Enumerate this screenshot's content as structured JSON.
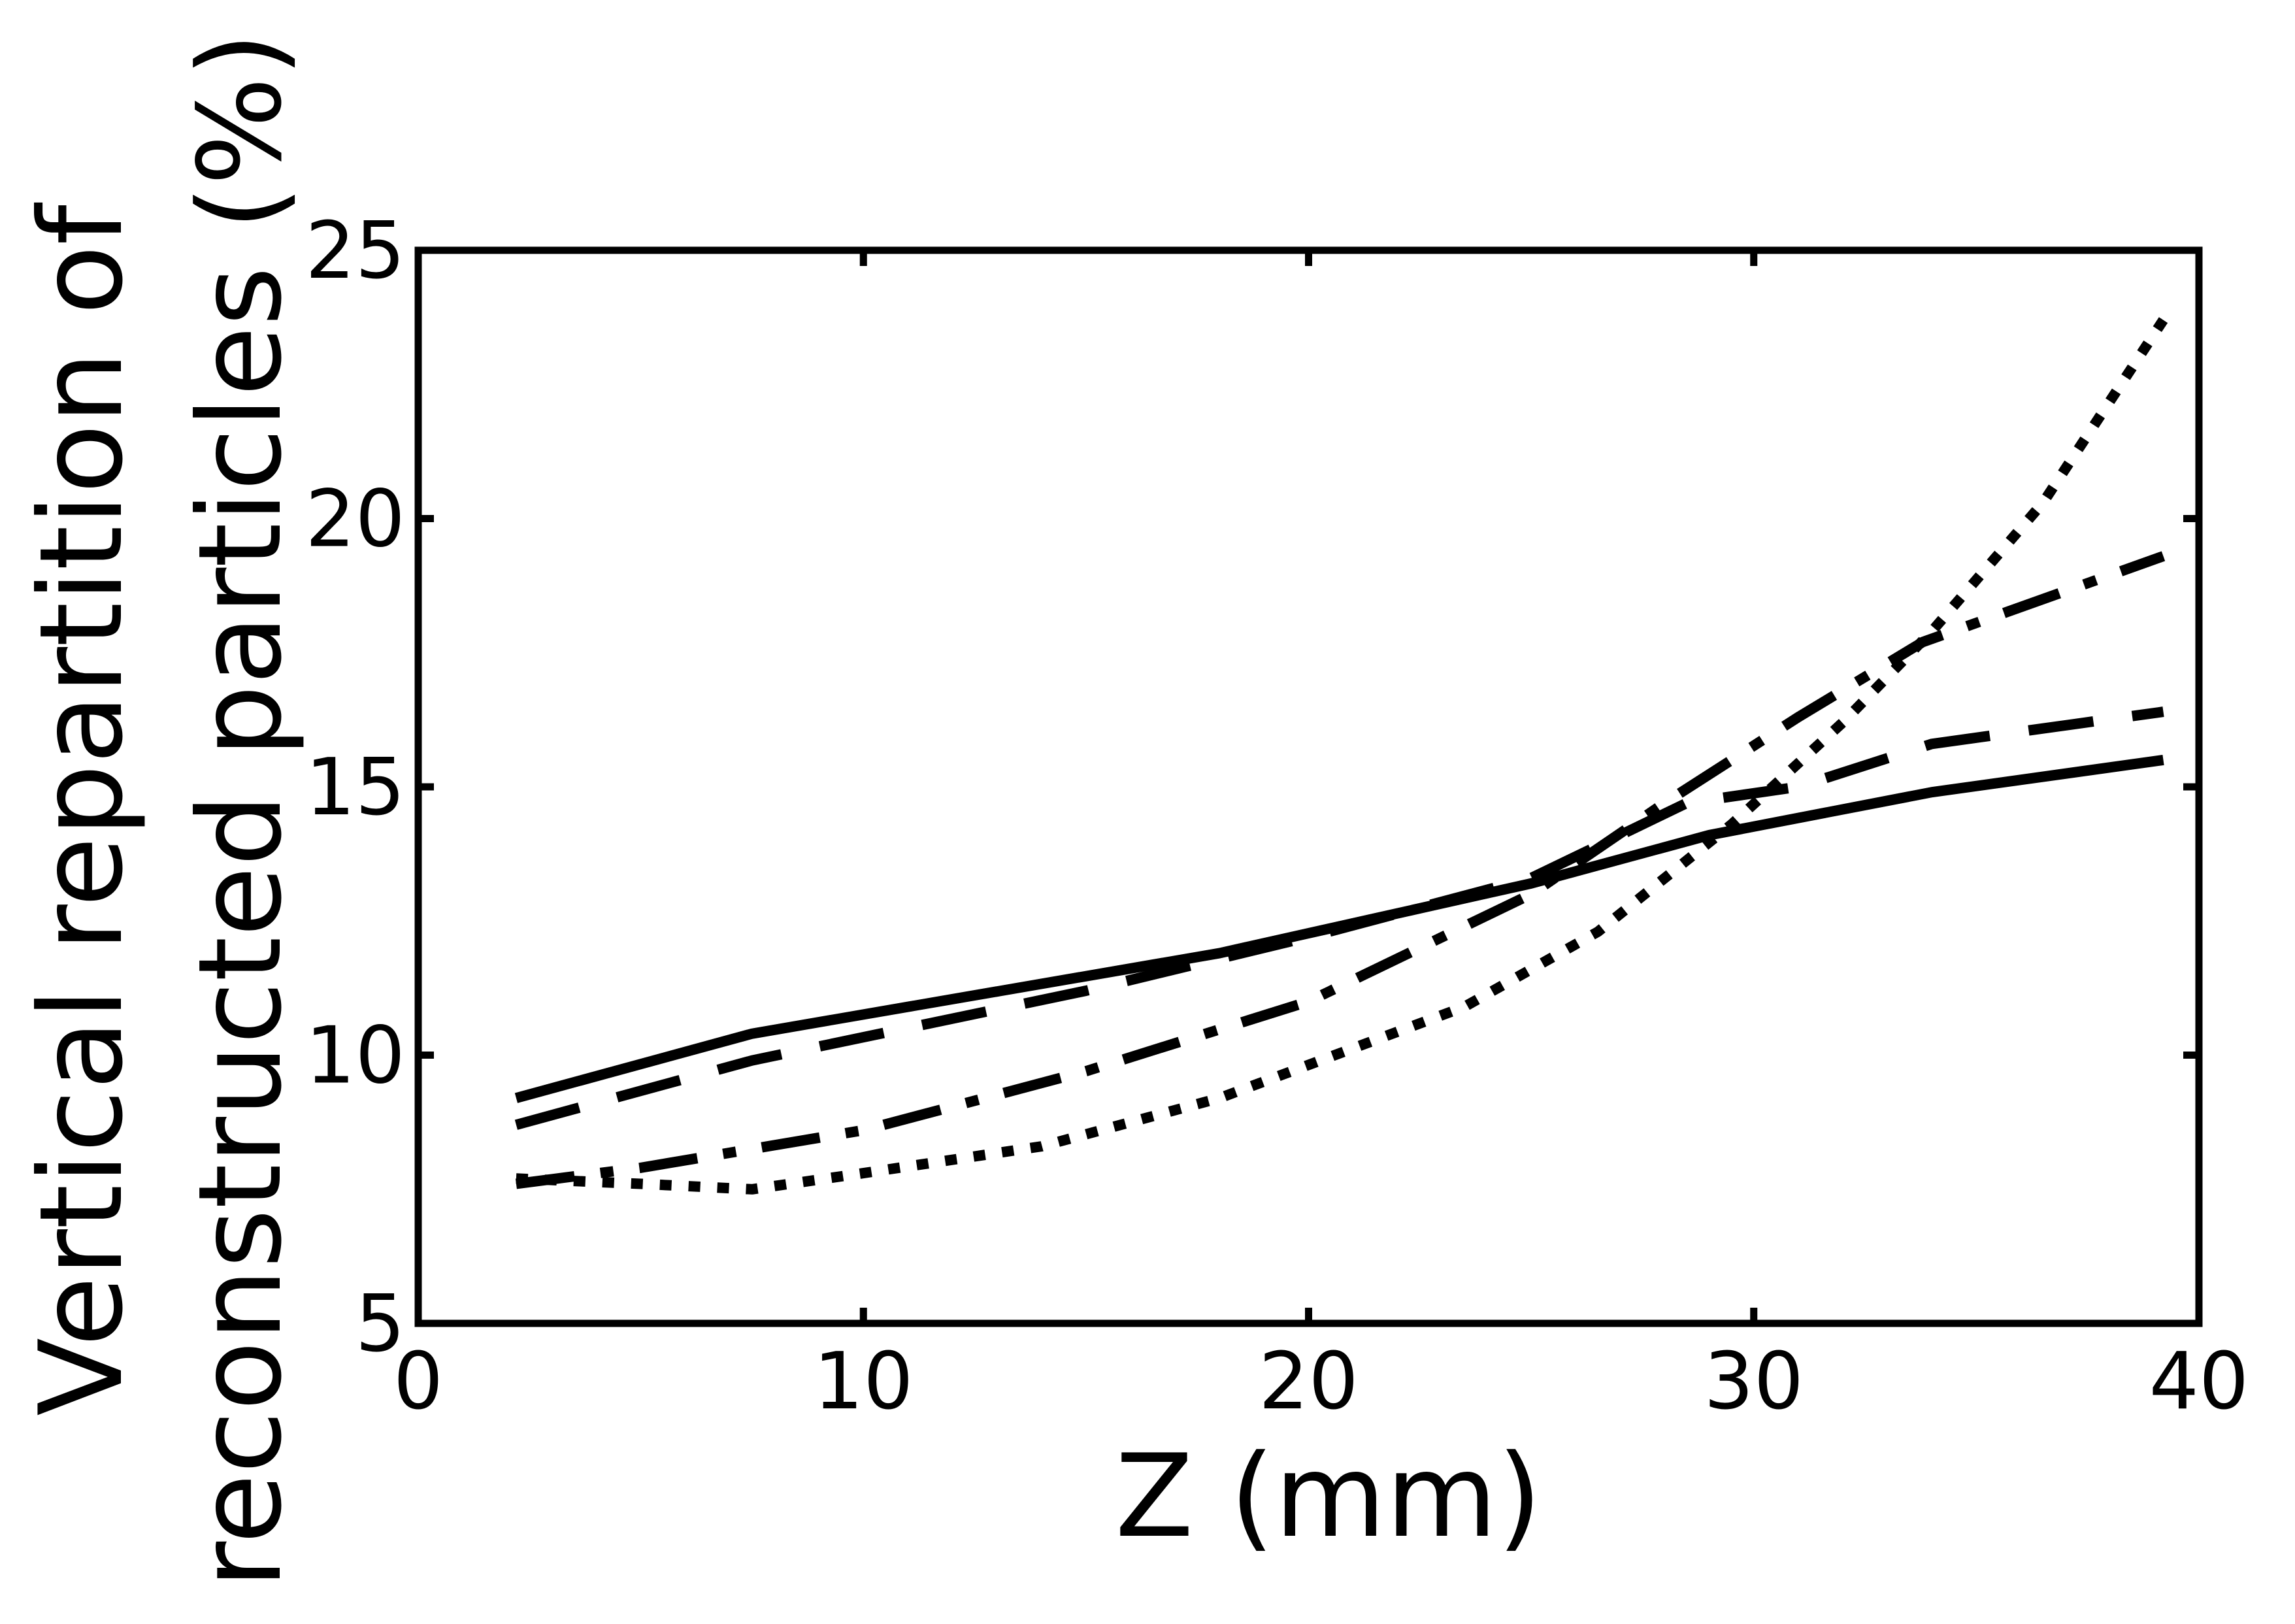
{
  "chart_data": {
    "type": "line",
    "title": "",
    "xlabel": "Z (mm)",
    "ylabel_line1": "Vertical repartition of",
    "ylabel_line2": "reconstructed particles (%)",
    "xlim": [
      0,
      40
    ],
    "ylim": [
      5,
      25
    ],
    "xticks": [
      0,
      10,
      20,
      30,
      40
    ],
    "yticks": [
      5,
      10,
      15,
      20,
      25
    ],
    "xtick_labels": [
      "0",
      "10",
      "20",
      "30",
      "40"
    ],
    "ytick_labels": [
      "5",
      "10",
      "15",
      "20",
      "25"
    ],
    "grid": false,
    "legend": "none",
    "series": [
      {
        "style": "solid",
        "x": [
          2.2,
          7.5,
          18,
          25,
          29,
          34,
          39.2
        ],
        "y": [
          9.2,
          10.4,
          11.9,
          13.2,
          14.1,
          14.9,
          15.5
        ]
      },
      {
        "style": "dashed",
        "x": [
          2.2,
          7.5,
          15,
          20,
          25,
          28.5,
          31,
          34,
          39.2
        ],
        "y": [
          8.7,
          9.9,
          11.2,
          12.2,
          13.3,
          14.7,
          15.0,
          15.8,
          16.4
        ]
      },
      {
        "style": "dashdot",
        "x": [
          2.2,
          5,
          10,
          15,
          20,
          25,
          28,
          31,
          33.8,
          39.2
        ],
        "y": [
          7.6,
          7.9,
          8.6,
          9.7,
          11.0,
          13.0,
          14.7,
          16.3,
          17.7,
          19.3
        ]
      },
      {
        "style": "dotted",
        "x": [
          2.2,
          5,
          7.5,
          10,
          14,
          18,
          23.5,
          26.5,
          29.5,
          32,
          34,
          36.5,
          39.2
        ],
        "y": [
          7.7,
          7.6,
          7.5,
          7.8,
          8.3,
          9.2,
          10.9,
          12.3,
          14.3,
          16.2,
          17.9,
          20.3,
          23.7
        ]
      }
    ]
  }
}
